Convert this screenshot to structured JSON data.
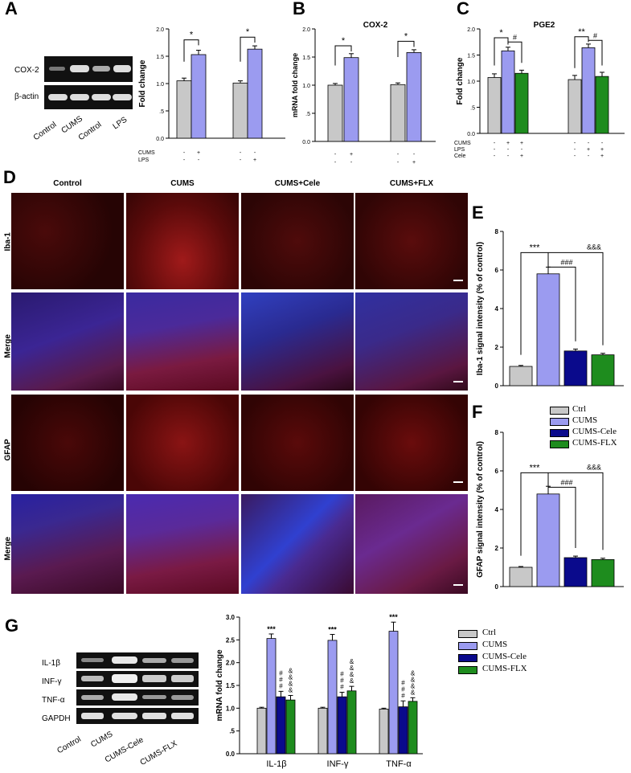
{
  "panels": {
    "a": "A",
    "b": "B",
    "c": "C",
    "d": "D",
    "e": "E",
    "f": "F",
    "g": "G"
  },
  "colors": {
    "ctrl": "#c8c8c8",
    "cums": "#9b9bf0",
    "cele": "#0a0a8c",
    "flx": "#1e8c1e"
  },
  "blotA": {
    "rows": [
      "COX-2",
      "β-actin"
    ],
    "lanes": [
      "Control",
      "CUMS",
      "Control",
      "LPS"
    ]
  },
  "blotG": {
    "rows": [
      "IL-1β",
      "INF-γ",
      "TNF-α",
      "GAPDH"
    ],
    "lanes": [
      "Control",
      "CUMS",
      "CUMS-Cele",
      "CUMS-FLX"
    ]
  },
  "micro": {
    "cols": [
      "Control",
      "CUMS",
      "CUMS+Cele",
      "CUMS+FLX"
    ],
    "rows": [
      "Iba-1",
      "Merge",
      "GFAP",
      "Merge"
    ]
  },
  "legend": {
    "ctrl": "Ctrl",
    "cums": "CUMS",
    "cele": "CUMS-Cele",
    "flx": "CUMS-FLX"
  },
  "chart_data": [
    {
      "id": "A",
      "type": "bar",
      "title": "",
      "ylabel": "Fold  change",
      "ylim": [
        0,
        2.0
      ],
      "yticks": [
        "0.0",
        ".5",
        "1.0",
        "1.5",
        "2.0"
      ],
      "values": [
        1.05,
        1.53,
        1.01,
        1.63
      ],
      "errors": [
        0.05,
        0.08,
        0.04,
        0.06
      ],
      "colors": [
        "ctrl",
        "cums",
        "ctrl",
        "cums"
      ],
      "cond_labels": [
        "CUMS",
        "LPS"
      ],
      "cond_rows": [
        [
          "-",
          "+",
          "-",
          "-"
        ],
        [
          "-",
          "-",
          "-",
          "+"
        ]
      ],
      "sig": [
        "*",
        "*"
      ]
    },
    {
      "id": "B",
      "type": "bar",
      "title": "COX-2",
      "ylabel": "mRNA fold  change",
      "ylim": [
        0,
        2.0
      ],
      "yticks": [
        "0.0",
        ".5",
        "1.0",
        "1.5",
        "2.0"
      ],
      "values": [
        1.0,
        1.49,
        1.01,
        1.58
      ],
      "errors": [
        0.03,
        0.07,
        0.03,
        0.05
      ],
      "colors": [
        "ctrl",
        "cums",
        "ctrl",
        "cums"
      ],
      "cond_rows": [
        [
          "-",
          "+",
          "-",
          "-"
        ],
        [
          "-",
          "-",
          "-",
          "+"
        ]
      ],
      "sig": [
        "*",
        "*"
      ]
    },
    {
      "id": "C",
      "type": "bar",
      "title": "PGE2",
      "ylabel": "Fold  change",
      "ylim": [
        0,
        2.0
      ],
      "yticks": [
        "0.0",
        ".5",
        "1.0",
        "1.5",
        "2.0"
      ],
      "values": [
        1.07,
        1.58,
        1.15,
        1.03,
        1.64,
        1.09
      ],
      "errors": [
        0.07,
        0.07,
        0.06,
        0.08,
        0.07,
        0.08
      ],
      "colors": [
        "ctrl",
        "cums",
        "flx",
        "ctrl",
        "cums",
        "flx"
      ],
      "cond_labels": [
        "CUMS",
        "LPS",
        "Cele"
      ],
      "cond_rows": [
        [
          "-",
          "+",
          "+",
          "-",
          "-",
          "-"
        ],
        [
          "-",
          "-",
          "-",
          "-",
          "+",
          "+"
        ],
        [
          "-",
          "-",
          "+",
          "-",
          "-",
          "+"
        ]
      ],
      "sig": [
        "*",
        "#",
        "**",
        "#"
      ]
    },
    {
      "id": "E",
      "type": "bar",
      "ylabel": "Iba-1 signal intensity (% of control)",
      "ylim": [
        0,
        8
      ],
      "yticks": [
        "0",
        "2",
        "4",
        "6",
        "8"
      ],
      "values": [
        1.0,
        5.8,
        1.8,
        1.6
      ],
      "errors": [
        0.05,
        0.35,
        0.1,
        0.08
      ],
      "colors": [
        "ctrl",
        "cums",
        "cele",
        "flx"
      ],
      "sig": [
        "***",
        "###",
        "&&&"
      ]
    },
    {
      "id": "F",
      "type": "bar",
      "ylabel": "GFAP signal intensity (% of control)",
      "ylim": [
        0,
        8
      ],
      "yticks": [
        "0",
        "2",
        "4",
        "6",
        "8"
      ],
      "values": [
        1.0,
        4.8,
        1.5,
        1.4
      ],
      "errors": [
        0.04,
        0.4,
        0.08,
        0.07
      ],
      "colors": [
        "ctrl",
        "cums",
        "cele",
        "flx"
      ],
      "sig": [
        "***",
        "###",
        "&&&"
      ]
    },
    {
      "id": "G",
      "type": "bar",
      "ylabel": "mRNA fold change",
      "ylim": [
        0,
        3.0
      ],
      "yticks": [
        "0.0",
        ".5",
        "1.0",
        "1.5",
        "2.0",
        "2.5",
        "3.0"
      ],
      "categories": [
        "IL-1β",
        "INF-γ",
        "TNF-α"
      ],
      "series": [
        {
          "name": "Ctrl",
          "color": "ctrl",
          "values": [
            1.0,
            1.0,
            0.98
          ],
          "errors": [
            0.02,
            0.02,
            0.02
          ]
        },
        {
          "name": "CUMS",
          "color": "cums",
          "values": [
            2.53,
            2.49,
            2.69
          ],
          "errors": [
            0.1,
            0.13,
            0.2
          ]
        },
        {
          "name": "CUMS-Cele",
          "color": "cele",
          "values": [
            1.25,
            1.25,
            1.03
          ],
          "errors": [
            0.12,
            0.1,
            0.13
          ]
        },
        {
          "name": "CUMS-FLX",
          "color": "flx",
          "values": [
            1.18,
            1.38,
            1.15
          ],
          "errors": [
            0.1,
            0.1,
            0.08
          ]
        }
      ],
      "sig_cums": "***",
      "sig_cele": "#\n#\n#",
      "sig_flx": "&\n&\n&\n&"
    }
  ]
}
